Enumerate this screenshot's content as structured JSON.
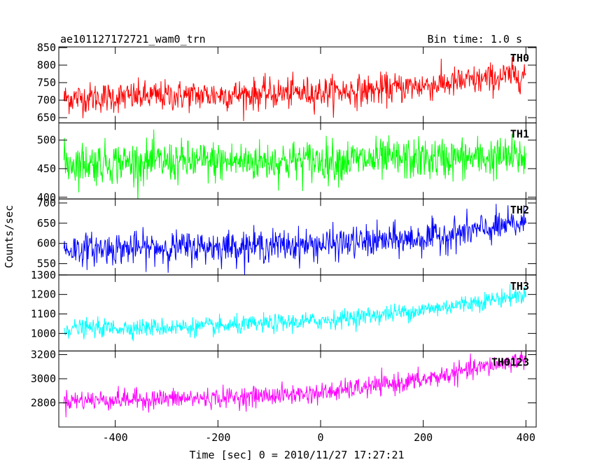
{
  "header": {
    "title": "ae101127172721_wam0_trn",
    "bin_time": "Bin time: 1.0 s"
  },
  "axes": {
    "xlabel": "Time [sec] 0 = 2010/11/27 17:27:21",
    "ylabel": "Counts/sec"
  },
  "chart_data": {
    "type": "line",
    "xlim": [
      -510,
      420
    ],
    "x_ticks": [
      -400,
      -200,
      0,
      200,
      400
    ],
    "x_start": -500,
    "x_end": 400,
    "x_step": 1,
    "panels": [
      {
        "name": "TH0",
        "color": "#ff0000",
        "ylim": [
          635,
          852
        ],
        "yticks": [
          650,
          700,
          750,
          800,
          850
        ],
        "trend": [
          [
            -500,
            705
          ],
          [
            -300,
            712
          ],
          [
            -100,
            718
          ],
          [
            100,
            728
          ],
          [
            300,
            755
          ],
          [
            400,
            775
          ]
        ],
        "noise": 40
      },
      {
        "name": "TH1",
        "color": "#00ff00",
        "ylim": [
          397,
          530
        ],
        "yticks": [
          400,
          450,
          500
        ],
        "trend": [
          [
            -500,
            460
          ],
          [
            -200,
            462
          ],
          [
            100,
            465
          ],
          [
            400,
            470
          ]
        ],
        "noise": 33
      },
      {
        "name": "TH2",
        "color": "#0000ff",
        "ylim": [
          522,
          710
        ],
        "yticks": [
          550,
          600,
          650,
          700
        ],
        "trend": [
          [
            -500,
            585
          ],
          [
            -200,
            592
          ],
          [
            0,
            597
          ],
          [
            200,
            612
          ],
          [
            400,
            650
          ]
        ],
        "noise": 36
      },
      {
        "name": "TH3",
        "color": "#00ffff",
        "ylim": [
          910,
          1300
        ],
        "yticks": [
          1000,
          1100,
          1200,
          1300
        ],
        "trend": [
          [
            -500,
            1025
          ],
          [
            -200,
            1035
          ],
          [
            0,
            1065
          ],
          [
            200,
            1120
          ],
          [
            400,
            1200
          ]
        ],
        "noise": 42
      },
      {
        "name": "TH0123",
        "color": "#ff00ff",
        "ylim": [
          2600,
          3230
        ],
        "yticks": [
          2800,
          3000,
          3200
        ],
        "trend": [
          [
            -500,
            2820
          ],
          [
            -200,
            2840
          ],
          [
            0,
            2880
          ],
          [
            200,
            2990
          ],
          [
            400,
            3170
          ]
        ],
        "noise": 75
      }
    ]
  }
}
